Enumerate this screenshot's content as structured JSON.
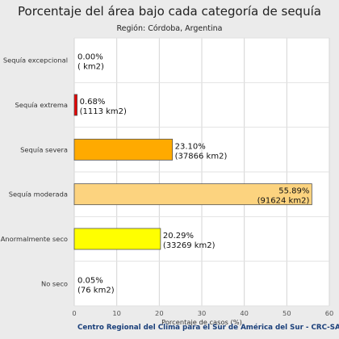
{
  "chart_data": {
    "type": "bar",
    "orientation": "horizontal",
    "title": "Porcentaje del área bajo cada categoría de sequía",
    "subtitle": "Región: Córdoba, Argentina",
    "xlabel": "Porcentaje de casos (%)",
    "xlim": [
      0,
      60
    ],
    "xticks": [
      0,
      10,
      20,
      30,
      40,
      50,
      60
    ],
    "grid": true,
    "categories": [
      "Sequía excepcional",
      "Sequía extrema",
      "Sequía severa",
      "Sequía moderada",
      "Anormalmente seco",
      "No seco"
    ],
    "values": [
      0.0,
      0.68,
      23.1,
      55.89,
      20.29,
      0.05
    ],
    "labels_pct": [
      "0.00%",
      "0.68%",
      "23.10%",
      "55.89%",
      "20.29%",
      "0.05%"
    ],
    "labels_area": [
      "( km2)",
      "(1113 km2)",
      "(37866 km2)",
      "(91624 km2)",
      "(33269 km2)",
      "(76 km2)"
    ],
    "colors": [
      "#730000",
      "#e60000",
      "#ffaa00",
      "#fcd37f",
      "#ffff00",
      "#ffffff"
    ]
  },
  "footer": "Centro Regional del Clima para el Sur de América del Sur - CRC-SAS"
}
